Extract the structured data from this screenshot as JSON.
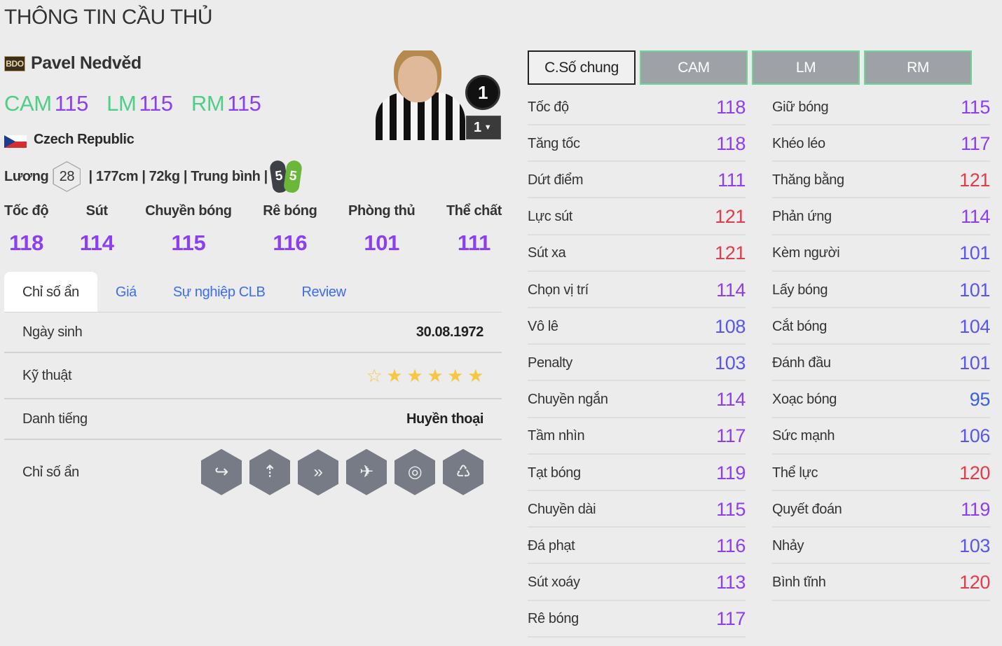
{
  "page_title": "THÔNG TIN CẦU THỦ",
  "player": {
    "season_badge": "BDO",
    "name": "Pavel Nedvěd",
    "country": "Czech Republic",
    "positions": [
      {
        "pos": "CAM",
        "ovr": "115"
      },
      {
        "pos": "LM",
        "ovr": "115"
      },
      {
        "pos": "RM",
        "ovr": "115"
      }
    ],
    "salary_label": "Lương",
    "salary": "28",
    "height": "177cm",
    "weight": "72kg",
    "body_type": "Trung bình",
    "weak_foot_left": "5",
    "weak_foot_right": "5",
    "upgrade_level": "1",
    "level_select": "1"
  },
  "main_stats": [
    {
      "label": "Tốc độ",
      "value": "118"
    },
    {
      "label": "Sút",
      "value": "114"
    },
    {
      "label": "Chuyền bóng",
      "value": "115"
    },
    {
      "label": "Rê bóng",
      "value": "116"
    },
    {
      "label": "Phòng thủ",
      "value": "101"
    },
    {
      "label": "Thể chất",
      "value": "111"
    }
  ],
  "tabs": [
    {
      "label": "Chỉ số ẩn",
      "active": true
    },
    {
      "label": "Giá"
    },
    {
      "label": "Sự nghiệp CLB"
    },
    {
      "label": "Review"
    }
  ],
  "info": {
    "birth_label": "Ngày sinh",
    "birth": "30.08.1972",
    "skill_label": "Kỹ thuật",
    "skill_stars": 5,
    "skill_max": 6,
    "fame_label": "Danh tiếng",
    "fame": "Huyền thoại",
    "traits_label": "Chỉ số ẩn",
    "traits": [
      "trait-curl-pass-icon",
      "trait-long-shot-icon",
      "trait-speed-dribbler-icon",
      "trait-power-header-icon",
      "trait-finesse-shot-icon",
      "trait-stamina-lungs-icon"
    ]
  },
  "stat_tabs": [
    {
      "label": "C.Số chung",
      "active": true
    },
    {
      "label": "CAM"
    },
    {
      "label": "LM"
    },
    {
      "label": "RM"
    }
  ],
  "colors": {
    "tier120": "#e23b4a",
    "tier110": "#8b3ff0",
    "tier100": "#5a55f0",
    "tier90": "#3a5fe0",
    "position": "#4fce87",
    "link": "#3d6cf0",
    "star": "#f7c744"
  },
  "stats_left": [
    [
      "Tốc độ",
      "118"
    ],
    [
      "Tăng tốc",
      "118"
    ],
    [
      "Dứt điểm",
      "111"
    ],
    [
      "Lực sút",
      "121"
    ],
    [
      "Sút xa",
      "121"
    ],
    [
      "Chọn vị trí",
      "114"
    ],
    [
      "Vô lê",
      "108"
    ],
    [
      "Penalty",
      "103"
    ],
    [
      "Chuyền ngắn",
      "114"
    ],
    [
      "Tầm nhìn",
      "117"
    ],
    [
      "Tạt bóng",
      "119"
    ],
    [
      "Chuyền dài",
      "115"
    ],
    [
      "Đá phạt",
      "116"
    ],
    [
      "Sút xoáy",
      "113"
    ],
    [
      "Rê bóng",
      "117"
    ]
  ],
  "stats_right": [
    [
      "Giữ bóng",
      "115"
    ],
    [
      "Khéo léo",
      "117"
    ],
    [
      "Thăng bằng",
      "121"
    ],
    [
      "Phản ứng",
      "114"
    ],
    [
      "Kèm người",
      "101"
    ],
    [
      "Lấy bóng",
      "101"
    ],
    [
      "Cắt bóng",
      "104"
    ],
    [
      "Đánh đầu",
      "101"
    ],
    [
      "Xoạc bóng",
      "95"
    ],
    [
      "Sức mạnh",
      "106"
    ],
    [
      "Thể lực",
      "120"
    ],
    [
      "Quyết đoán",
      "119"
    ],
    [
      "Nhảy",
      "103"
    ],
    [
      "Bình tĩnh",
      "120"
    ]
  ]
}
